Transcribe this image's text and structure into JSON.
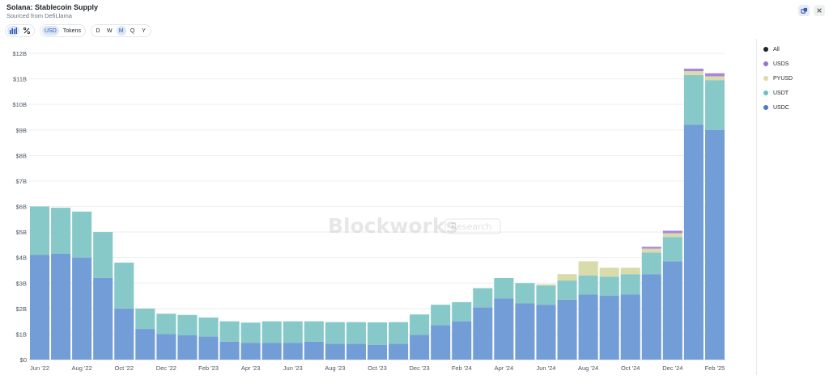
{
  "header": {
    "title": "Solana: Stablecoin Supply",
    "subtitle": "Sourced from DefiLlama"
  },
  "toolbar": {
    "chart_icon": "bar-chart-icon",
    "percent_icon": "percent-icon",
    "units": [
      "USD",
      "Tokens"
    ],
    "active_unit": "USD",
    "periods": [
      "D",
      "W",
      "M",
      "Q",
      "Y"
    ],
    "active_period": "M"
  },
  "watermark": {
    "brand": "Blockworks",
    "tag": "Research"
  },
  "legend": [
    {
      "label": "All",
      "color": "#1f2328"
    },
    {
      "label": "USDS",
      "color": "#9b6fd6"
    },
    {
      "label": "PYUSD",
      "color": "#d8dca6"
    },
    {
      "label": "USDT",
      "color": "#6fbfc1"
    },
    {
      "label": "USDC",
      "color": "#4a78c8"
    }
  ],
  "colors": {
    "USDC": "#729dd6",
    "USDT": "#86c9c8",
    "PYUSD": "#d9dcaa",
    "USDS": "#a986dc"
  },
  "chart_data": {
    "type": "bar",
    "stacked": true,
    "categories": [
      "Jun '22",
      "Jul '22",
      "Aug '22",
      "Sep '22",
      "Oct '22",
      "Nov '22",
      "Dec '22",
      "Jan '23",
      "Feb '23",
      "Mar '23",
      "Apr '23",
      "May '23",
      "Jun '23",
      "Jul '23",
      "Aug '23",
      "Sep '23",
      "Oct '23",
      "Nov '23",
      "Dec '23",
      "Jan '24",
      "Feb '24",
      "Mar '24",
      "Apr '24",
      "May '24",
      "Jun '24",
      "Jul '24",
      "Aug '24",
      "Sep '24",
      "Oct '24",
      "Nov '24",
      "Dec '24",
      "Jan '25",
      "Feb '25"
    ],
    "x_tick_labels": [
      "Jun '22",
      "Aug '22",
      "Oct '22",
      "Dec '22",
      "Feb '23",
      "Apr '23",
      "Jun '23",
      "Aug '23",
      "Oct '23",
      "Dec '23",
      "Feb '24",
      "Apr '24",
      "Jun '24",
      "Aug '24",
      "Oct '24",
      "Dec '24",
      "Feb '25"
    ],
    "series": [
      {
        "name": "USDC",
        "values": [
          4.1,
          4.15,
          4.0,
          3.2,
          2.0,
          1.2,
          1.0,
          0.95,
          0.9,
          0.7,
          0.65,
          0.65,
          0.65,
          0.7,
          0.62,
          0.62,
          0.58,
          0.62,
          0.97,
          1.35,
          1.5,
          2.05,
          2.4,
          2.2,
          2.15,
          2.35,
          2.55,
          2.5,
          2.55,
          3.35,
          3.85,
          9.2,
          9.0
        ]
      },
      {
        "name": "USDT",
        "values": [
          1.9,
          1.8,
          1.8,
          1.8,
          1.8,
          0.8,
          0.8,
          0.8,
          0.75,
          0.8,
          0.8,
          0.85,
          0.85,
          0.8,
          0.85,
          0.85,
          0.88,
          0.85,
          0.8,
          0.8,
          0.75,
          0.75,
          0.8,
          0.8,
          0.75,
          0.75,
          0.75,
          0.75,
          0.8,
          0.85,
          0.95,
          1.95,
          1.95
        ]
      },
      {
        "name": "PYUSD",
        "values": [
          0,
          0,
          0,
          0,
          0,
          0,
          0,
          0,
          0,
          0,
          0,
          0,
          0,
          0,
          0,
          0,
          0,
          0,
          0,
          0,
          0,
          0,
          0,
          0,
          0.05,
          0.25,
          0.55,
          0.35,
          0.25,
          0.15,
          0.15,
          0.15,
          0.15
        ]
      },
      {
        "name": "USDS",
        "values": [
          0,
          0,
          0,
          0,
          0,
          0,
          0,
          0,
          0,
          0,
          0,
          0,
          0,
          0,
          0,
          0,
          0,
          0,
          0,
          0,
          0,
          0,
          0,
          0,
          0,
          0,
          0,
          0,
          0,
          0.07,
          0.1,
          0.1,
          0.12
        ]
      }
    ],
    "y_tick_labels": [
      "$0",
      "$1B",
      "$2B",
      "$3B",
      "$4B",
      "$5B",
      "$6B",
      "$7B",
      "$8B",
      "$9B",
      "$10B",
      "$11B",
      "$12B"
    ],
    "ylim": [
      0,
      12
    ],
    "grid": true,
    "legend_position": "right"
  }
}
